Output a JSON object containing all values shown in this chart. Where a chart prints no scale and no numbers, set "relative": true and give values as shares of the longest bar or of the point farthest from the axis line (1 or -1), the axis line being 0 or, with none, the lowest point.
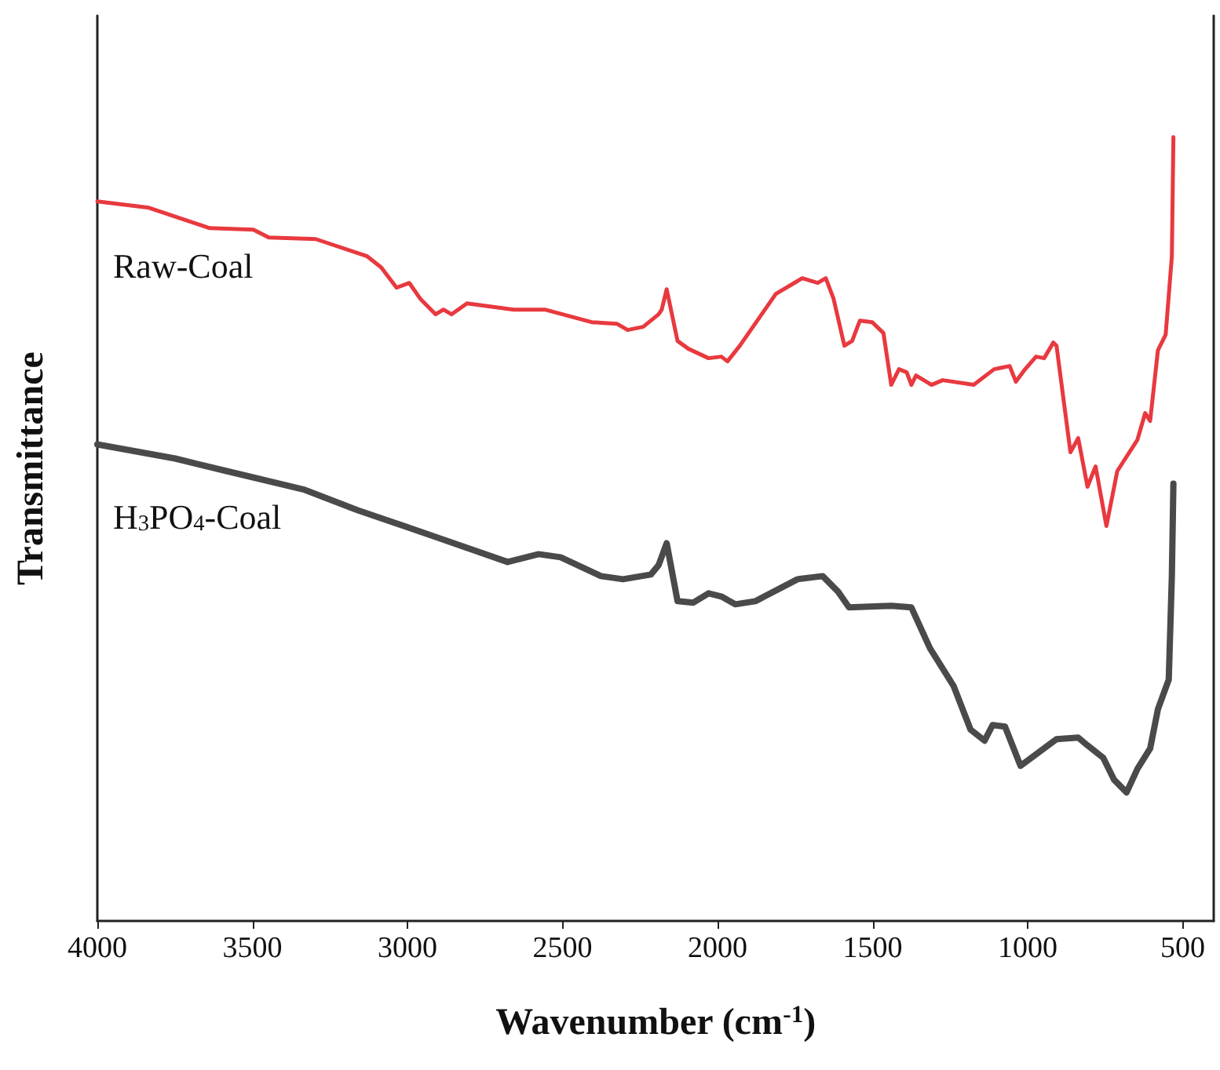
{
  "chart_data": {
    "type": "line",
    "relative": true,
    "xlabel": "Wavenumber (cm$^{-1}$)",
    "ylabel": "Transmittance",
    "xlim": [
      4000,
      400
    ],
    "xticks": [
      4000,
      3500,
      3000,
      2500,
      2000,
      1500,
      1000,
      500
    ],
    "series": [
      {
        "name": "Raw-Coal",
        "color": "#e8393f",
        "x": [
          4000,
          3834,
          3638,
          3497,
          3447,
          3296,
          3130,
          3085,
          3035,
          2994,
          2959,
          2909,
          2884,
          2858,
          2808,
          2657,
          2557,
          2406,
          2325,
          2290,
          2240,
          2190,
          2180,
          2164,
          2129,
          2094,
          2029,
          1988,
          1968,
          1928,
          1812,
          1727,
          1677,
          1651,
          1626,
          1591,
          1566,
          1541,
          1501,
          1465,
          1440,
          1415,
          1390,
          1375,
          1360,
          1310,
          1274,
          1174,
          1108,
          1058,
          1038,
          1008,
          973,
          947,
          917,
          907,
          862,
          837,
          807,
          781,
          746,
          711,
          646,
          621,
          605,
          580,
          555,
          535,
          530
        ],
        "values": [
          0.918,
          0.91,
          0.884,
          0.882,
          0.872,
          0.87,
          0.848,
          0.834,
          0.808,
          0.814,
          0.794,
          0.774,
          0.78,
          0.774,
          0.788,
          0.78,
          0.78,
          0.764,
          0.762,
          0.754,
          0.758,
          0.774,
          0.78,
          0.806,
          0.74,
          0.73,
          0.718,
          0.72,
          0.714,
          0.734,
          0.8,
          0.82,
          0.814,
          0.82,
          0.794,
          0.734,
          0.74,
          0.766,
          0.764,
          0.75,
          0.684,
          0.704,
          0.7,
          0.684,
          0.696,
          0.684,
          0.69,
          0.684,
          0.704,
          0.708,
          0.688,
          0.704,
          0.72,
          0.718,
          0.738,
          0.734,
          0.598,
          0.616,
          0.554,
          0.58,
          0.504,
          0.574,
          0.614,
          0.648,
          0.638,
          0.728,
          0.748,
          0.848,
          1.0
        ]
      },
      {
        "name": "H$_{3}$PO$_{4}$-Coal",
        "color": "#4a4a4a",
        "x": [
          4000,
          3749,
          3583,
          3331,
          3160,
          2909,
          2677,
          2577,
          2506,
          2376,
          2305,
          2215,
          2190,
          2164,
          2129,
          2079,
          2029,
          1988,
          1943,
          1878,
          1742,
          1661,
          1611,
          1576,
          1440,
          1375,
          1315,
          1239,
          1184,
          1139,
          1113,
          1073,
          1023,
          907,
          837,
          807,
          756,
          721,
          681,
          646,
          605,
          580,
          545,
          535,
          530
        ],
        "values": [
          0.608,
          0.59,
          0.574,
          0.55,
          0.524,
          0.49,
          0.458,
          0.468,
          0.464,
          0.44,
          0.436,
          0.442,
          0.454,
          0.482,
          0.408,
          0.406,
          0.418,
          0.414,
          0.404,
          0.408,
          0.436,
          0.44,
          0.42,
          0.4,
          0.402,
          0.4,
          0.348,
          0.3,
          0.244,
          0.23,
          0.25,
          0.248,
          0.198,
          0.232,
          0.234,
          0.224,
          0.208,
          0.18,
          0.164,
          0.194,
          0.22,
          0.27,
          0.308,
          0.44,
          0.558
        ]
      }
    ]
  }
}
